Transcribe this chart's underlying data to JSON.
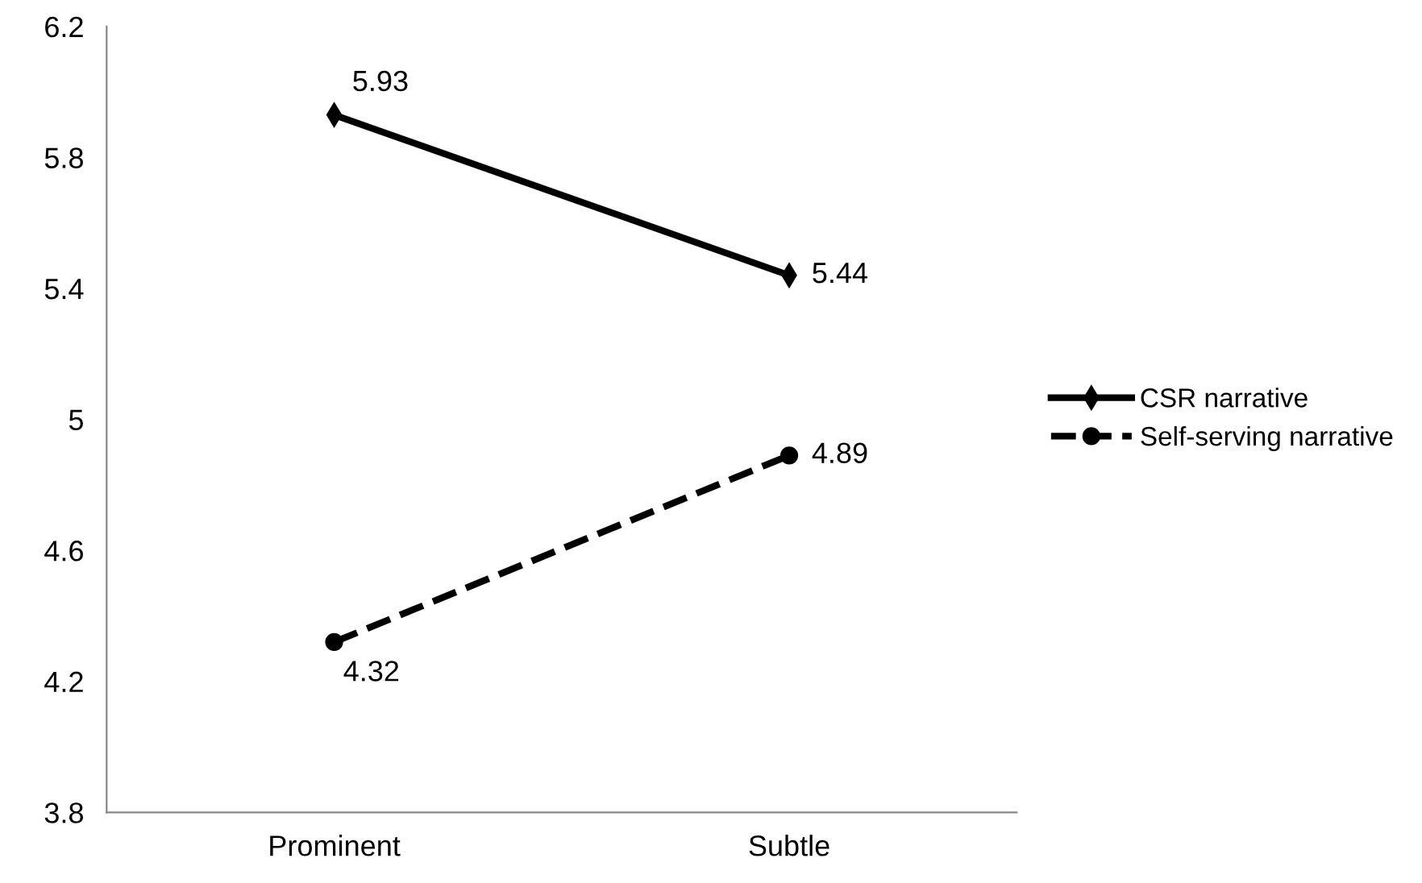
{
  "chart_data": {
    "type": "line",
    "categories": [
      "Prominent",
      "Subtle"
    ],
    "series": [
      {
        "name": "CSR narrative",
        "color": "#000000",
        "values": [
          5.93,
          5.44
        ],
        "marker": "diamond",
        "line_style": "solid"
      },
      {
        "name": "Self-serving narrative",
        "color": "#000000",
        "values": [
          4.32,
          4.89
        ],
        "marker": "circle",
        "line_style": "dashed"
      }
    ],
    "ylim": [
      3.8,
      6.2
    ],
    "yticks": [
      3.8,
      4.2,
      4.6,
      5,
      5.4,
      5.8,
      6.2
    ],
    "grid": false,
    "legend": "right",
    "data_labels": true
  }
}
